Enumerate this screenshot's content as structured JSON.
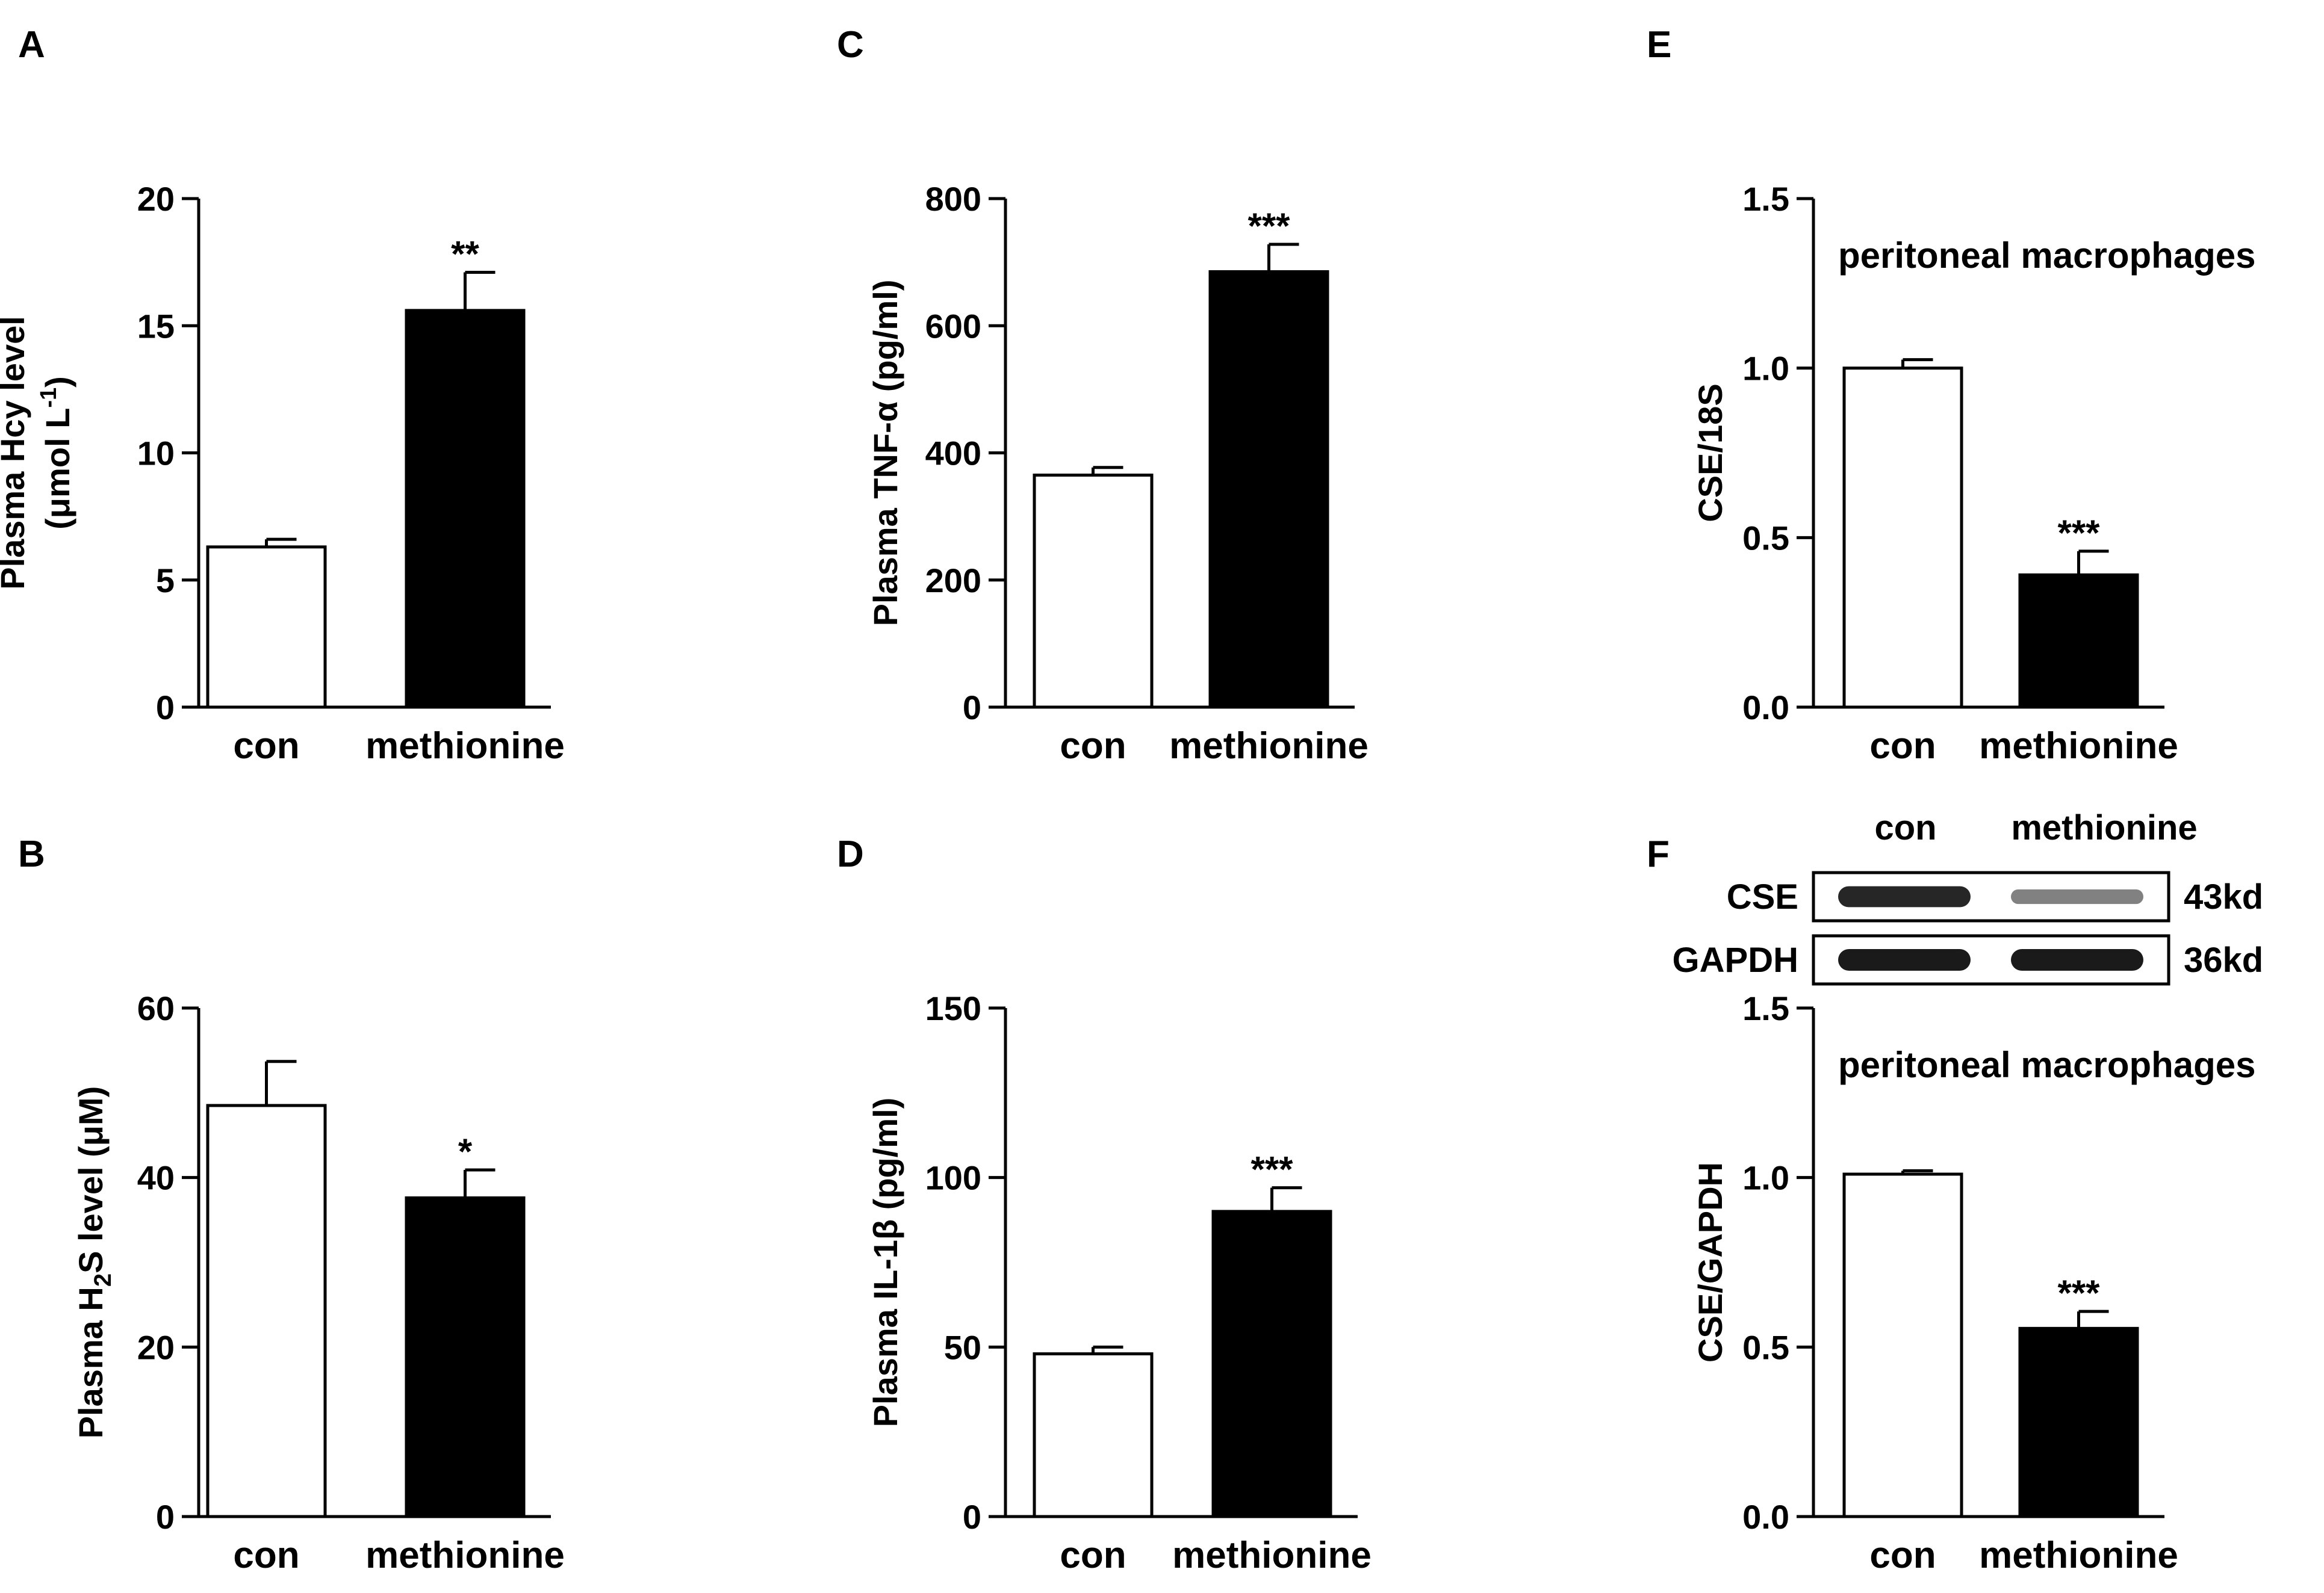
{
  "colors": {
    "con": "#ffffff",
    "methionine": "#000000",
    "axis": "#000000",
    "band": "#1a1a1a"
  },
  "chart_data": [
    {
      "panel": "A",
      "type": "bar",
      "categories": [
        "con",
        "methionine"
      ],
      "values": [
        6.3,
        15.6
      ],
      "errors": [
        0.3,
        1.5
      ],
      "significance": [
        "",
        "**"
      ],
      "ylabel": "Plasma Hcy level",
      "ylabel_line2_pre": "(μmol L",
      "ylabel_sup": "-1",
      "ylabel_line2_post": ")",
      "ylim": [
        0,
        20
      ],
      "yticks": [
        0,
        5,
        10,
        15,
        20
      ],
      "ytick_labels": [
        "0",
        "5",
        "10",
        "15",
        "20"
      ]
    },
    {
      "panel": "B",
      "type": "bar",
      "categories": [
        "con",
        "methionine"
      ],
      "values": [
        48.5,
        37.6
      ],
      "errors": [
        5.2,
        3.3
      ],
      "significance": [
        "",
        "*"
      ],
      "ylabel_pre": "Plasma H",
      "ylabel_sub": "2",
      "ylabel_post": "S level (μM)",
      "ylim": [
        0,
        60
      ],
      "yticks": [
        0,
        20,
        40,
        60
      ],
      "ytick_labels": [
        "0",
        "20",
        "40",
        "60"
      ]
    },
    {
      "panel": "C",
      "type": "bar",
      "categories": [
        "con",
        "methionine"
      ],
      "values": [
        365,
        685
      ],
      "errors": [
        12,
        43
      ],
      "significance": [
        "",
        "***"
      ],
      "ylabel": "Plasma TNF-α  (pg/ml)",
      "ylim": [
        0,
        800
      ],
      "yticks": [
        0,
        200,
        400,
        600,
        800
      ],
      "ytick_labels": [
        "0",
        "200",
        "400",
        "600",
        "800"
      ]
    },
    {
      "panel": "D",
      "type": "bar",
      "categories": [
        "con",
        "methionine"
      ],
      "values": [
        48.0,
        90.0
      ],
      "errors": [
        2.0,
        7.0
      ],
      "significance": [
        "",
        "***"
      ],
      "ylabel": "Plasma IL-1β  (pg/ml)",
      "ylim": [
        0,
        150
      ],
      "yticks": [
        0,
        50,
        100,
        150
      ],
      "ytick_labels": [
        "0",
        "50",
        "100",
        "150"
      ]
    },
    {
      "panel": "E",
      "type": "bar",
      "categories": [
        "con",
        "methionine"
      ],
      "values": [
        1.0,
        0.39
      ],
      "errors": [
        0.025,
        0.07
      ],
      "significance": [
        "",
        "***"
      ],
      "ylabel": "CSE/18S",
      "annotation": "peritoneal macrophages",
      "ylim": [
        0,
        1.5
      ],
      "yticks": [
        0,
        0.5,
        1.0,
        1.5
      ],
      "ytick_labels": [
        "0.0",
        "0.5",
        "1.0",
        "1.5"
      ]
    },
    {
      "panel": "F",
      "type": "bar",
      "categories": [
        "con",
        "methionine"
      ],
      "values": [
        1.01,
        0.555
      ],
      "errors": [
        0.01,
        0.05
      ],
      "significance": [
        "",
        "***"
      ],
      "ylabel": "CSE/GAPDH",
      "annotation": "peritoneal macrophages",
      "ylim": [
        0,
        1.5
      ],
      "yticks": [
        0,
        0.5,
        1.0,
        1.5
      ],
      "ytick_labels": [
        "0.0",
        "0.5",
        "1.0",
        "1.5"
      ],
      "blot": {
        "lane_labels": [
          "con",
          "methionine"
        ],
        "rows": [
          {
            "protein": "CSE",
            "size": "43kd",
            "intensity": [
              0.95,
              0.55
            ]
          },
          {
            "protein": "GAPDH",
            "size": "36kd",
            "intensity": [
              1.0,
              1.0
            ]
          }
        ]
      }
    }
  ]
}
